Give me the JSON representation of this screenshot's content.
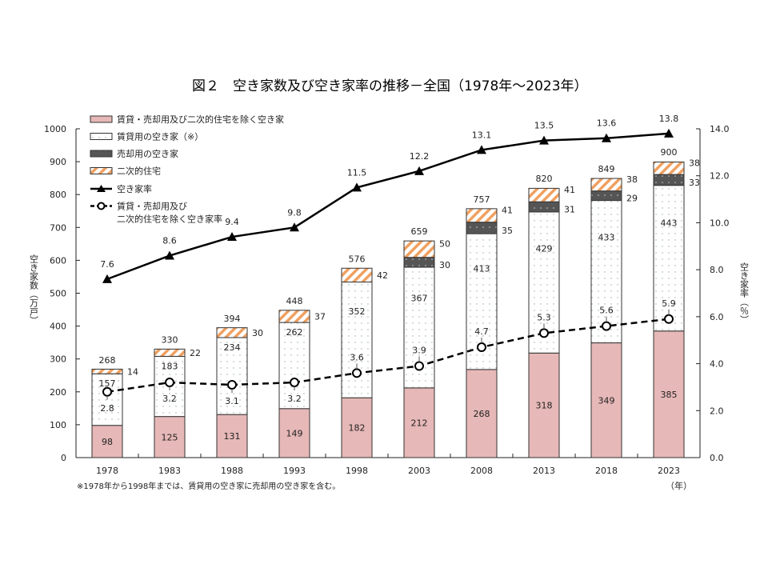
{
  "chart_data": {
    "type": "bar",
    "title": "図２　空き家数及び空き家率の推移－全国（1978年～2023年）",
    "xlabel": "（年）",
    "ylabel": "空き家数（万戸）",
    "y2label": "空き家率（％）",
    "ylim": [
      0,
      1000
    ],
    "y2lim": [
      0,
      14
    ],
    "yticks": [
      "0",
      "100",
      "200",
      "300",
      "400",
      "500",
      "600",
      "700",
      "800",
      "900",
      "1000"
    ],
    "y2ticks": [
      "0.0",
      "2.0",
      "4.0",
      "6.0",
      "8.0",
      "10.0",
      "12.0",
      "14.0"
    ],
    "categories": [
      "1978",
      "1983",
      "1988",
      "1993",
      "1998",
      "2003",
      "2008",
      "2013",
      "2018",
      "2023"
    ],
    "totals": [
      268,
      330,
      394,
      448,
      576,
      659,
      757,
      820,
      849,
      900
    ],
    "series": [
      {
        "name": "賃貸・売却用及び二次的住宅を除く空き家",
        "kind": "bar",
        "color": "#e6b8b7",
        "values": [
          98,
          125,
          131,
          149,
          182,
          212,
          268,
          318,
          349,
          385
        ]
      },
      {
        "name": "賃貸用の空き家（※）",
        "kind": "bar",
        "color": "#ffffff",
        "values": [
          157,
          183,
          234,
          262,
          352,
          367,
          413,
          429,
          433,
          443
        ]
      },
      {
        "name": "売却用の空き家",
        "kind": "bar",
        "color": "#595959",
        "values": [
          null,
          null,
          null,
          null,
          null,
          30,
          35,
          31,
          29,
          33
        ]
      },
      {
        "name": "二次的住宅",
        "kind": "bar",
        "color": "#f4b183",
        "values": [
          14,
          22,
          30,
          37,
          42,
          50,
          41,
          41,
          38,
          38
        ]
      },
      {
        "name": "空き家率",
        "kind": "line",
        "axis": "right",
        "values": [
          7.6,
          8.6,
          9.4,
          9.8,
          11.5,
          12.2,
          13.1,
          13.5,
          13.6,
          13.8
        ],
        "labels": [
          "7.6",
          "8.6",
          "9.4",
          "9.8",
          "11.5",
          "12.2",
          "13.1",
          "13.5",
          "13.6",
          "13.8"
        ]
      },
      {
        "name": "賃貸・売却用及び\n二次的住宅を除く空き家率",
        "kind": "dashed-line",
        "axis": "right",
        "values": [
          2.8,
          3.2,
          3.1,
          3.2,
          3.6,
          3.9,
          4.7,
          5.3,
          5.6,
          5.9
        ],
        "labels": [
          "2.8",
          "3.2",
          "3.1",
          "3.2",
          "3.6",
          "3.9",
          "4.7",
          "5.3",
          "5.6",
          "5.9"
        ]
      }
    ],
    "legend": {
      "placement": "top-left",
      "entries": [
        "賃貸・売却用及び二次的住宅を除く空き家",
        "賃貸用の空き家（※）",
        "売却用の空き家",
        "二次的住宅",
        "空き家率",
        "賃貸・売却用及び",
        "二次的住宅を除く空き家率"
      ]
    },
    "footnote": "※1978年から1998年までは、賃貸用の空き家に売却用の空き家を含む。",
    "grid": false
  }
}
